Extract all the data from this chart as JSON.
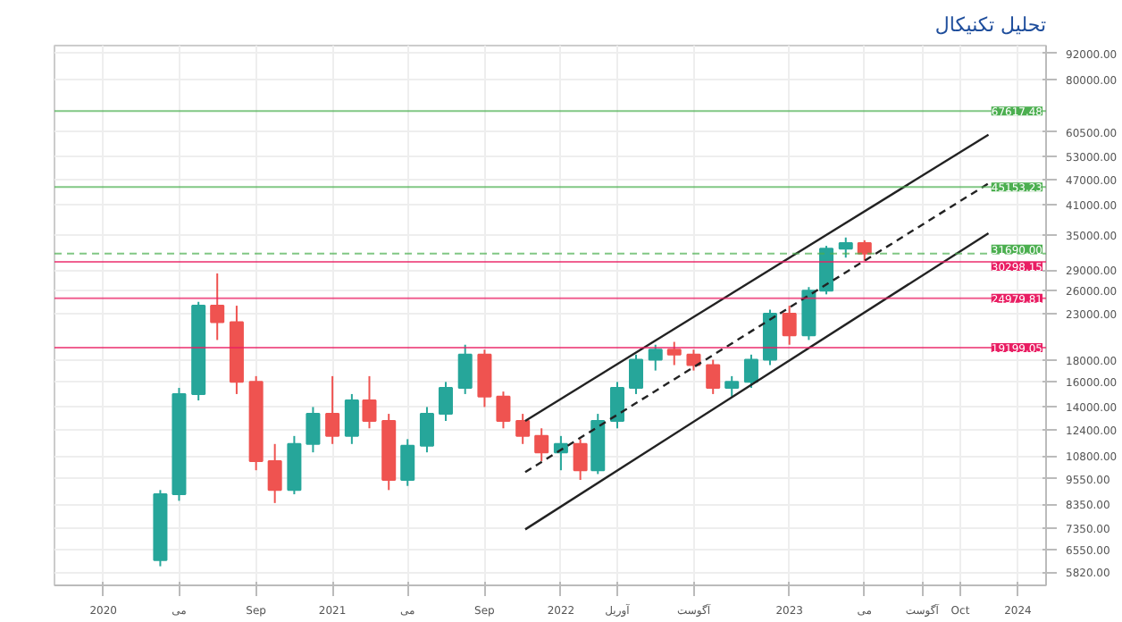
{
  "chart_data": {
    "type": "candlestick",
    "title": "تحلیل تکنیکال",
    "log": true,
    "grid": true,
    "x": [
      "2020-04",
      "2020-05",
      "2020-06",
      "2020-07",
      "2020-08",
      "2020-09",
      "2020-10",
      "2020-11",
      "2020-12",
      "2021-01",
      "2021-02",
      "2021-03",
      "2021-04",
      "2021-05",
      "2021-06",
      "2021-07",
      "2021-08",
      "2021-09",
      "2021-10",
      "2021-11",
      "2021-12",
      "2022-01",
      "2022-02",
      "2022-03",
      "2022-04",
      "2022-05",
      "2022-06",
      "2022-07",
      "2022-08",
      "2022-09",
      "2022-10",
      "2022-11",
      "2022-12",
      "2023-01",
      "2023-02",
      "2023-03",
      "2023-04",
      "2023-05"
    ],
    "ohlc": [
      [
        6200,
        9000,
        6000,
        8800
      ],
      [
        8800,
        15500,
        8500,
        15000
      ],
      [
        15000,
        24500,
        14500,
        24000
      ],
      [
        24000,
        28500,
        20000,
        22000
      ],
      [
        22000,
        24000,
        15000,
        16000
      ],
      [
        16000,
        16500,
        10000,
        10500
      ],
      [
        10500,
        11500,
        8400,
        9000
      ],
      [
        9000,
        12000,
        8800,
        11500
      ],
      [
        11500,
        14000,
        11000,
        13500
      ],
      [
        13500,
        16500,
        11500,
        12000
      ],
      [
        12000,
        15000,
        11500,
        14500
      ],
      [
        14500,
        16500,
        12500,
        13000
      ],
      [
        13000,
        13500,
        9000,
        9500
      ],
      [
        9500,
        11800,
        9200,
        11400
      ],
      [
        11400,
        14000,
        11000,
        13500
      ],
      [
        13500,
        16000,
        13000,
        15500
      ],
      [
        15500,
        19500,
        15000,
        18500
      ],
      [
        18500,
        19000,
        14000,
        14800
      ],
      [
        14800,
        15200,
        12500,
        13000
      ],
      [
        13000,
        13500,
        11500,
        12000
      ],
      [
        12000,
        12500,
        10500,
        11000
      ],
      [
        11000,
        12000,
        10000,
        11500
      ],
      [
        11500,
        11800,
        9500,
        10000
      ],
      [
        10000,
        13500,
        9800,
        13000
      ],
      [
        13000,
        16000,
        12500,
        15500
      ],
      [
        15500,
        18500,
        15000,
        18000
      ],
      [
        18000,
        19500,
        17000,
        19000
      ],
      [
        19000,
        19800,
        17500,
        18500
      ],
      [
        18500,
        19000,
        17000,
        17500
      ],
      [
        17500,
        18000,
        15000,
        15500
      ],
      [
        15500,
        16500,
        14800,
        16000
      ],
      [
        16000,
        18500,
        15500,
        18000
      ],
      [
        18000,
        23500,
        17500,
        23000
      ],
      [
        23000,
        24000,
        19500,
        20500
      ],
      [
        20500,
        26500,
        20000,
        26000
      ],
      [
        26000,
        33000,
        25500,
        32500
      ],
      [
        32500,
        34500,
        31000,
        33500
      ],
      [
        33500,
        34000,
        30500,
        31690
      ]
    ],
    "series": [
      {
        "type": "line",
        "x": [
          "2021-11-05",
          "2023-11-15"
        ],
        "values": [
          13000,
          59600
        ],
        "color": "#222222",
        "line_style": "solid"
      },
      {
        "type": "line",
        "x": [
          "2021-11-05",
          "2023-11-15"
        ],
        "values": [
          9900,
          46000
        ],
        "color": "#222222",
        "line_style": "dashed"
      },
      {
        "type": "line",
        "x": [
          "2021-11-05",
          "2023-11-15"
        ],
        "values": [
          7300,
          35300
        ],
        "color": "#222222",
        "line_style": "solid"
      }
    ],
    "ref_lines": [
      {
        "axis": "y",
        "value": 67617.48,
        "label": "67617.48",
        "color": "#4caf50",
        "line_style": "solid"
      },
      {
        "axis": "y",
        "value": 45153.23,
        "label": "45153.23",
        "color": "#4caf50",
        "line_style": "solid"
      },
      {
        "axis": "y",
        "value": 31690.0,
        "label": "31690.00",
        "color": "#4caf50",
        "line_style": "dashed"
      },
      {
        "axis": "y",
        "value": 30298.15,
        "label": "30298.15",
        "color": "#e91e63",
        "line_style": "solid"
      },
      {
        "axis": "y",
        "value": 24979.81,
        "label": "24979.81",
        "color": "#e91e63",
        "line_style": "solid"
      },
      {
        "axis": "y",
        "value": 19199.05,
        "label": "19199.05",
        "color": "#e91e63",
        "line_style": "solid"
      }
    ],
    "ylim": [
      5420,
      95800
    ],
    "yticks": [
      {
        "value": 92000,
        "label": "92000.00"
      },
      {
        "value": 80000,
        "label": "80000.00"
      },
      {
        "value": 60500,
        "label": "60500.00"
      },
      {
        "value": 53000,
        "label": "53000.00"
      },
      {
        "value": 47000,
        "label": "47000.00"
      },
      {
        "value": 41000,
        "label": "41000.00"
      },
      {
        "value": 35000,
        "label": "35000.00"
      },
      {
        "value": 29000,
        "label": "29000.00"
      },
      {
        "value": 26000,
        "label": "26000.00"
      },
      {
        "value": 23000,
        "label": "23000.00"
      },
      {
        "value": 18000,
        "label": "18000.00"
      },
      {
        "value": 16000,
        "label": "16000.00"
      },
      {
        "value": 14000,
        "label": "14000.00"
      },
      {
        "value": 12400,
        "label": "12400.00"
      },
      {
        "value": 10800,
        "label": "10800.00"
      },
      {
        "value": 9550,
        "label": "9550.00"
      },
      {
        "value": 8350,
        "label": "8350.00"
      },
      {
        "value": 7350,
        "label": "7350.00"
      },
      {
        "value": 6550,
        "label": "6550.00"
      },
      {
        "value": 5820,
        "label": "5820.00"
      }
    ],
    "xlim": [
      "2019-10-15",
      "2024-02-15"
    ],
    "xticks": [
      {
        "value": "2020-01-01",
        "label": "2020"
      },
      {
        "value": "2020-05-01",
        "label": "می"
      },
      {
        "value": "2020-09-01",
        "label": "Sep"
      },
      {
        "value": "2021-01-01",
        "label": "2021"
      },
      {
        "value": "2021-05-01",
        "label": "می"
      },
      {
        "value": "2021-09-01",
        "label": "Sep"
      },
      {
        "value": "2022-01-01",
        "label": "2022"
      },
      {
        "value": "2022-04-01",
        "label": "آوریل"
      },
      {
        "value": "2022-08-01",
        "label": "آگوست"
      },
      {
        "value": "2023-01-01",
        "label": "2023"
      },
      {
        "value": "2023-05-01",
        "label": "می"
      },
      {
        "value": "2023-08-01",
        "label": "آگوست"
      },
      {
        "value": "2023-10-01",
        "label": "Oct"
      },
      {
        "value": "2024-01-01",
        "label": "2024"
      }
    ]
  }
}
